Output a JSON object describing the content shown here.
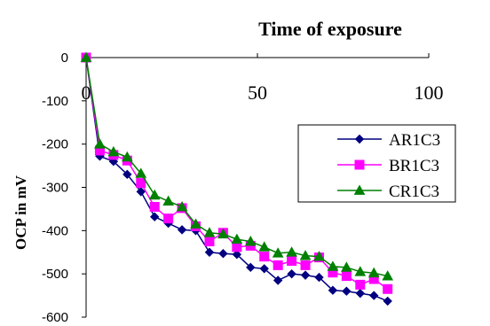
{
  "chart_data": {
    "type": "line",
    "title": "Time of exposure",
    "xlabel": "",
    "ylabel": "OCP in  mV",
    "xlim": [
      0,
      100
    ],
    "ylim": [
      -600,
      0
    ],
    "x_ticks": [
      "0",
      "50",
      "100"
    ],
    "y_ticks": [
      "0",
      "-100",
      "-200",
      "-300",
      "-400",
      "-500",
      "-600"
    ],
    "x_axis_position": "top",
    "grid": false,
    "legend_position": "right",
    "series": [
      {
        "name": "AR1C3",
        "color": "#000080",
        "marker": "diamond",
        "x": [
          0,
          4,
          8,
          12,
          16,
          20,
          24,
          28,
          32,
          36,
          40,
          44,
          48,
          52,
          56,
          60,
          64,
          68,
          72,
          76,
          80,
          84,
          88
        ],
        "y": [
          0,
          -228,
          -240,
          -270,
          -310,
          -368,
          -383,
          -398,
          -400,
          -450,
          -453,
          -455,
          -485,
          -488,
          -515,
          -500,
          -503,
          -508,
          -538,
          -540,
          -545,
          -550,
          -563
        ]
      },
      {
        "name": "BR1C3",
        "color": "#ff00ff",
        "marker": "square",
        "x": [
          0,
          4,
          8,
          12,
          16,
          20,
          24,
          28,
          32,
          36,
          40,
          44,
          48,
          52,
          56,
          60,
          64,
          68,
          72,
          76,
          80,
          84,
          88
        ],
        "y": [
          0,
          -215,
          -225,
          -238,
          -290,
          -345,
          -372,
          -348,
          -390,
          -425,
          -405,
          -438,
          -435,
          -460,
          -480,
          -470,
          -480,
          -462,
          -497,
          -505,
          -525,
          -512,
          -535
        ]
      },
      {
        "name": "CR1C3",
        "color": "#008000",
        "marker": "triangle",
        "x": [
          0,
          4,
          8,
          12,
          16,
          20,
          24,
          28,
          32,
          36,
          40,
          44,
          48,
          52,
          56,
          60,
          64,
          68,
          72,
          76,
          80,
          84,
          88
        ],
        "y": [
          0,
          -200,
          -218,
          -230,
          -268,
          -318,
          -332,
          -345,
          -385,
          -405,
          -408,
          -420,
          -425,
          -438,
          -452,
          -450,
          -458,
          -460,
          -483,
          -485,
          -495,
          -498,
          -505
        ]
      }
    ]
  }
}
